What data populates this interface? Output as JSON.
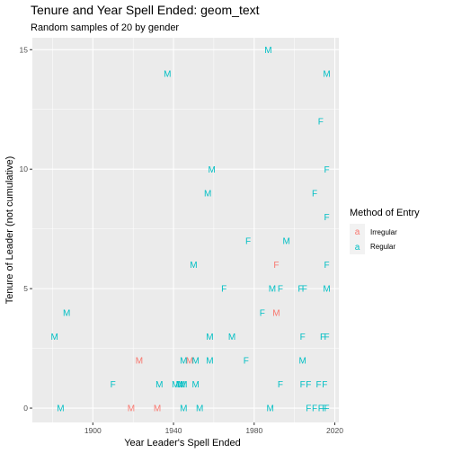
{
  "chart_data": {
    "type": "scatter",
    "geom": "text",
    "title": "Tenure and Year Spell Ended: geom_text",
    "subtitle": "Random samples of 20 by gender",
    "xlabel": "Year Leader's Spell Ended",
    "ylabel": "Tenure of Leader (not cumulative)",
    "xlim": [
      1870,
      2022
    ],
    "ylim": [
      -0.6,
      15.5
    ],
    "x_ticks": [
      1900,
      1940,
      1980,
      2020
    ],
    "y_ticks": [
      0,
      5,
      10,
      15
    ],
    "x_tick_labels": [
      "1900",
      "1940",
      "1980",
      "2020"
    ],
    "y_tick_labels": [
      "0",
      "5",
      "10",
      "15"
    ],
    "grid": true,
    "legend": {
      "title": "Method of Entry",
      "placement": "right",
      "key_glyph": "a",
      "entries": [
        {
          "label": "Irregular",
          "color": "#F8766D"
        },
        {
          "label": "Regular",
          "color": "#00BFC4"
        }
      ]
    },
    "colors": {
      "Irregular": "#F8766D",
      "Regular": "#00BFC4",
      "panel": "#EBEBEB",
      "grid_major": "#FFFFFF"
    },
    "series": [
      {
        "name": "Irregular",
        "color": "#F8766D",
        "points": [
          {
            "x": 1923,
            "y": 2,
            "label": "M"
          },
          {
            "x": 1948,
            "y": 2,
            "label": "M"
          },
          {
            "x": 1991,
            "y": 6,
            "label": "F"
          },
          {
            "x": 1991,
            "y": 4,
            "label": "M"
          },
          {
            "x": 1919,
            "y": 0,
            "label": "M"
          },
          {
            "x": 1932,
            "y": 0,
            "label": "M"
          }
        ]
      },
      {
        "name": "Regular",
        "color": "#00BFC4",
        "points": [
          {
            "x": 1987,
            "y": 15,
            "label": "M"
          },
          {
            "x": 1937,
            "y": 14,
            "label": "M"
          },
          {
            "x": 2016,
            "y": 14,
            "label": "M"
          },
          {
            "x": 2013,
            "y": 12,
            "label": "F"
          },
          {
            "x": 1959,
            "y": 10,
            "label": "M"
          },
          {
            "x": 2016,
            "y": 10,
            "label": "F"
          },
          {
            "x": 1957,
            "y": 9,
            "label": "M"
          },
          {
            "x": 2010,
            "y": 9,
            "label": "F"
          },
          {
            "x": 2016,
            "y": 8,
            "label": "F"
          },
          {
            "x": 1977,
            "y": 7,
            "label": "F"
          },
          {
            "x": 1996,
            "y": 7,
            "label": "M"
          },
          {
            "x": 1950,
            "y": 6,
            "label": "M"
          },
          {
            "x": 2016,
            "y": 6,
            "label": "F"
          },
          {
            "x": 1965,
            "y": 5,
            "label": "F"
          },
          {
            "x": 1989,
            "y": 5,
            "label": "M"
          },
          {
            "x": 1993,
            "y": 5,
            "label": "F"
          },
          {
            "x": 2003,
            "y": 5,
            "label": "F"
          },
          {
            "x": 2005,
            "y": 5,
            "label": "F"
          },
          {
            "x": 2016,
            "y": 5,
            "label": "M"
          },
          {
            "x": 1887,
            "y": 4,
            "label": "M"
          },
          {
            "x": 1984,
            "y": 4,
            "label": "F"
          },
          {
            "x": 1881,
            "y": 3,
            "label": "M"
          },
          {
            "x": 1958,
            "y": 3,
            "label": "M"
          },
          {
            "x": 1969,
            "y": 3,
            "label": "M"
          },
          {
            "x": 2004,
            "y": 3,
            "label": "F"
          },
          {
            "x": 2014,
            "y": 3,
            "label": "F"
          },
          {
            "x": 2016,
            "y": 3,
            "label": "F"
          },
          {
            "x": 1945,
            "y": 2,
            "label": "M"
          },
          {
            "x": 1951,
            "y": 2,
            "label": "M"
          },
          {
            "x": 1958,
            "y": 2,
            "label": "M"
          },
          {
            "x": 1976,
            "y": 2,
            "label": "F"
          },
          {
            "x": 2004,
            "y": 2,
            "label": "M"
          },
          {
            "x": 1910,
            "y": 1,
            "label": "F"
          },
          {
            "x": 1933,
            "y": 1,
            "label": "M"
          },
          {
            "x": 1941,
            "y": 1,
            "label": "M"
          },
          {
            "x": 1943,
            "y": 1,
            "label": "M"
          },
          {
            "x": 1944,
            "y": 1,
            "label": "M"
          },
          {
            "x": 1945,
            "y": 1,
            "label": "M"
          },
          {
            "x": 1951,
            "y": 1,
            "label": "M"
          },
          {
            "x": 1993,
            "y": 1,
            "label": "F"
          },
          {
            "x": 2004,
            "y": 1,
            "label": "F"
          },
          {
            "x": 2007,
            "y": 1,
            "label": "F"
          },
          {
            "x": 2012,
            "y": 1,
            "label": "F"
          },
          {
            "x": 2015,
            "y": 1,
            "label": "F"
          },
          {
            "x": 1884,
            "y": 0,
            "label": "M"
          },
          {
            "x": 1945,
            "y": 0,
            "label": "M"
          },
          {
            "x": 1953,
            "y": 0,
            "label": "M"
          },
          {
            "x": 1988,
            "y": 0,
            "label": "M"
          },
          {
            "x": 2007,
            "y": 0,
            "label": "F"
          },
          {
            "x": 2010,
            "y": 0,
            "label": "F"
          },
          {
            "x": 2013,
            "y": 0,
            "label": "F"
          },
          {
            "x": 2015,
            "y": 0,
            "label": "F"
          },
          {
            "x": 2016,
            "y": 0,
            "label": "F"
          }
        ]
      }
    ]
  }
}
